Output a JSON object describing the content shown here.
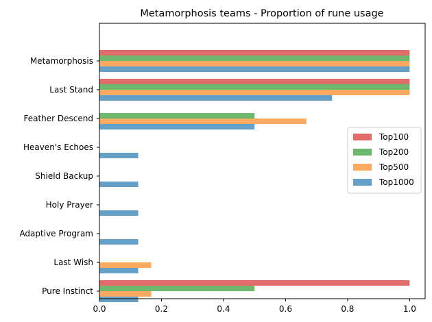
{
  "chart_data": {
    "type": "bar",
    "orientation": "horizontal",
    "title": "Metamorphosis teams - Proportion of rune usage",
    "xlabel": "",
    "ylabel": "",
    "xlim": [
      0,
      1.05
    ],
    "xticks": [
      0.0,
      0.2,
      0.4,
      0.6,
      0.8,
      1.0
    ],
    "xtick_labels": [
      "0.0",
      "0.2",
      "0.4",
      "0.6",
      "0.8",
      "1.0"
    ],
    "grid": false,
    "legend_position": "center-right",
    "categories": [
      "Metamorphosis",
      "Last Stand",
      "Feather Descend",
      "Heaven's Echoes",
      "Shield Backup",
      "Holy Prayer",
      "Adaptive Program",
      "Last Wish",
      "Pure Instinct"
    ],
    "series": [
      {
        "name": "Top100",
        "color": "#d9534f",
        "values": [
          1.0,
          1.0,
          0,
          0,
          0,
          0,
          0,
          0,
          1.0
        ]
      },
      {
        "name": "Top200",
        "color": "#55ac55",
        "values": [
          1.0,
          1.0,
          0.5,
          0,
          0,
          0,
          0,
          0,
          0.5
        ]
      },
      {
        "name": "Top500",
        "color": "#fb9a45",
        "values": [
          1.0,
          1.0,
          0.667,
          0,
          0,
          0,
          0,
          0.167,
          0.167
        ]
      },
      {
        "name": "Top1000",
        "color": "#4a8fc0",
        "values": [
          1.0,
          0.75,
          0.5,
          0.125,
          0.125,
          0.125,
          0.125,
          0.125,
          0.125
        ]
      }
    ]
  }
}
